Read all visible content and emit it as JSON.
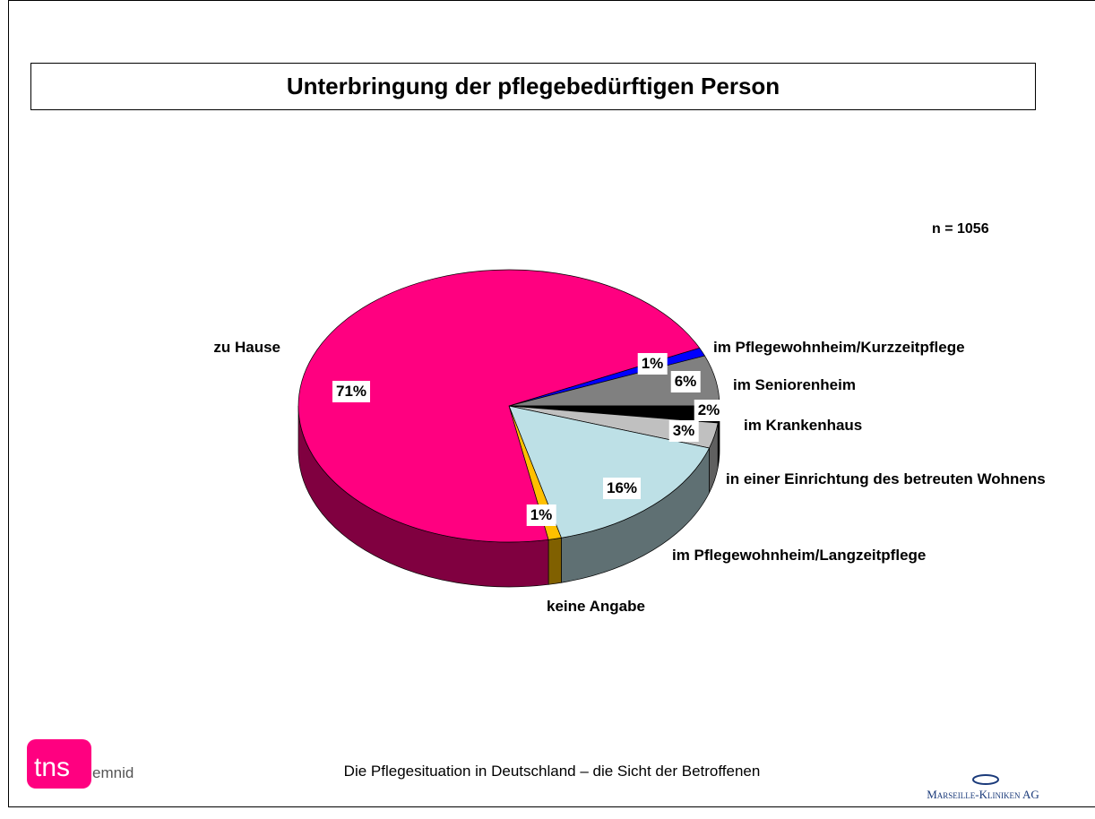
{
  "chart_data": {
    "type": "pie3d",
    "title": "Unterbringung der pflegebedürftigen Person",
    "annotation": "n = 1056",
    "categories": [
      "im Pflegewohnheim/Kurzzeitpflege",
      "im Seniorenheim",
      "im Krankenhaus",
      "in einer Einrichtung des betreuten Wohnens",
      "im Pflegewohnheim/Langzeitpflege",
      "keine Angabe",
      "zu Hause"
    ],
    "values": [
      1,
      6,
      2,
      3,
      16,
      1,
      71
    ],
    "value_labels": [
      "1%",
      "6%",
      "2%",
      "3%",
      "16%",
      "1%",
      "71%"
    ],
    "colors": [
      "#0000ff",
      "#808080",
      "#000000",
      "#c0c0c0",
      "#bde0e6",
      "#ffc000",
      "#ff0080"
    ]
  },
  "footer": {
    "text": "Die Pflegesituation in Deutschland – die Sicht der Betroffenen",
    "logo_left": "tns",
    "logo_left_sub": "emnid",
    "logo_right": "Marseille-Kliniken AG"
  }
}
